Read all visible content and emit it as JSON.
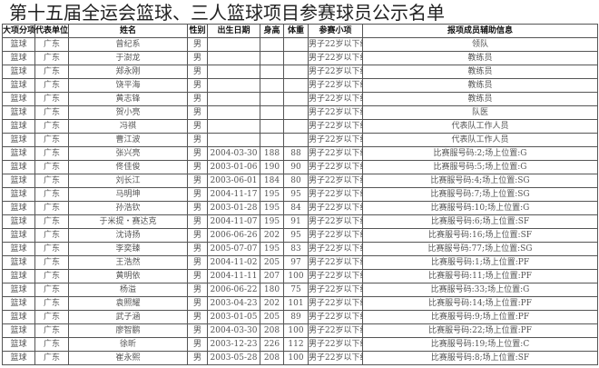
{
  "title": "第十五届全运会篮球、三人篮球项目参赛球员公示名单",
  "headers": [
    "大项分项",
    "代表单位",
    "姓名",
    "性别",
    "出生日期",
    "身高",
    "体重",
    "参赛小项",
    "报项成员辅助信息"
  ],
  "rows": [
    [
      "篮球",
      "广东",
      "曾纪系",
      "男",
      "",
      "",
      "",
      "男子22岁以下组",
      "领队"
    ],
    [
      "篮球",
      "广东",
      "于澍龙",
      "男",
      "",
      "",
      "",
      "男子22岁以下组",
      "教练员"
    ],
    [
      "篮球",
      "广东",
      "郑永刚",
      "男",
      "",
      "",
      "",
      "男子22岁以下组",
      "教练员"
    ],
    [
      "篮球",
      "广东",
      "饶平海",
      "男",
      "",
      "",
      "",
      "男子22岁以下组",
      "教练员"
    ],
    [
      "篮球",
      "广东",
      "黄志锋",
      "男",
      "",
      "",
      "",
      "男子22岁以下组",
      "教练员"
    ],
    [
      "篮球",
      "广东",
      "贺小亮",
      "男",
      "",
      "",
      "",
      "男子22岁以下组",
      "队医"
    ],
    [
      "篮球",
      "广东",
      "冯祺",
      "男",
      "",
      "",
      "",
      "男子22岁以下组",
      "代表队工作人员"
    ],
    [
      "篮球",
      "广东",
      "曹江波",
      "男",
      "",
      "",
      "",
      "男子22岁以下组",
      "代表队工作人员"
    ],
    [
      "篮球",
      "广东",
      "张兴亮",
      "男",
      "2004-03-30",
      "188",
      "88",
      "男子22岁以下组",
      "比赛服号码:2;场上位置:G"
    ],
    [
      "篮球",
      "广东",
      "佟佳俊",
      "男",
      "2003-01-06",
      "190",
      "90",
      "男子22岁以下组",
      "比赛服号码:5;场上位置:G"
    ],
    [
      "篮球",
      "广东",
      "刘长江",
      "男",
      "2003-06-01",
      "184",
      "80",
      "男子22岁以下组",
      "比赛服号码:4;场上位置:SG"
    ],
    [
      "篮球",
      "广东",
      "马明坤",
      "男",
      "2004-11-17",
      "195",
      "95",
      "男子22岁以下组",
      "比赛服号码:7;场上位置:SG"
    ],
    [
      "篮球",
      "广东",
      "孙浩钦",
      "男",
      "2003-01-28",
      "195",
      "84",
      "男子22岁以下组",
      "比赛服号码:10;场上位置:G"
    ],
    [
      "篮球",
      "广东",
      "于米提・赛达克",
      "男",
      "2004-11-07",
      "195",
      "91",
      "男子22岁以下组",
      "比赛服号码:6;场上位置:SF"
    ],
    [
      "篮球",
      "广东",
      "沈诗扬",
      "男",
      "2006-06-26",
      "202",
      "95",
      "男子22岁以下组",
      "比赛服号码:16;场上位置:SF"
    ],
    [
      "篮球",
      "广东",
      "李奕臻",
      "男",
      "2005-07-07",
      "195",
      "83",
      "男子22岁以下组",
      "比赛服号码:77;场上位置:SG"
    ],
    [
      "篮球",
      "广东",
      "王浩然",
      "男",
      "2004-11-02",
      "205",
      "97",
      "男子22岁以下组",
      "比赛服号码:1;场上位置:PF"
    ],
    [
      "篮球",
      "广东",
      "黄明依",
      "男",
      "2004-11-11",
      "207",
      "100",
      "男子22岁以下组",
      "比赛服号码:11;场上位置:PF"
    ],
    [
      "篮球",
      "广东",
      "杨溢",
      "男",
      "2006-06-22",
      "180",
      "75",
      "男子22岁以下组",
      "比赛服号码:33;场上位置:G"
    ],
    [
      "篮球",
      "广东",
      "袁照耀",
      "男",
      "2003-04-23",
      "202",
      "101",
      "男子22岁以下组",
      "比赛服号码:14;场上位置:PF"
    ],
    [
      "篮球",
      "广东",
      "武子涵",
      "男",
      "2003-01-05",
      "205",
      "89",
      "男子22岁以下组",
      "比赛服号码:9;场上位置:PF"
    ],
    [
      "篮球",
      "广东",
      "廖智鹏",
      "男",
      "2004-03-30",
      "208",
      "100",
      "男子22岁以下组",
      "比赛服号码:22;场上位置:PF"
    ],
    [
      "篮球",
      "广东",
      "徐昕",
      "男",
      "2003-12-23",
      "226",
      "112",
      "男子22岁以下组",
      "比赛服号码:19;场上位置:C"
    ],
    [
      "篮球",
      "广东",
      "崔永熙",
      "男",
      "2003-05-28",
      "208",
      "100",
      "男子22岁以下组",
      "比赛服号码:8;场上位置:SF"
    ]
  ]
}
